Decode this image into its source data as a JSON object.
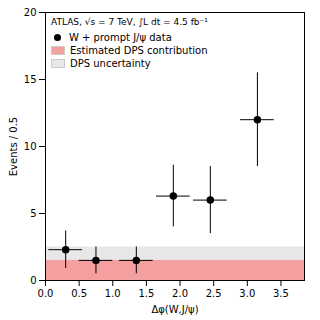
{
  "chart_data": {
    "type": "scatter",
    "xlabel": "Δφ(W,J/ψ)",
    "ylabel": "Events / 0.5",
    "xlim": [
      0,
      3.85
    ],
    "ylim": [
      0,
      20
    ],
    "xticks": [
      {
        "value": 0,
        "label": "0.0"
      },
      0.5,
      {
        "value": 1.0,
        "label": "1.0"
      },
      1.5,
      {
        "value": 2.0,
        "label": "2.0"
      },
      2.5,
      {
        "value": 3.0,
        "label": "3.0"
      },
      3.5
    ],
    "yticks": [
      0,
      5,
      10,
      15,
      20
    ],
    "x": [
      0.3,
      0.75,
      1.35,
      1.9,
      2.45,
      3.15
    ],
    "series": [
      {
        "name": "W + prompt J/ψ data",
        "color": "#000000",
        "marker": "circle",
        "values": [
          2.3,
          1.5,
          1.5,
          6.3,
          6.0,
          12.0
        ],
        "xerr": [
          0.25,
          0.25,
          0.25,
          0.25,
          0.25,
          0.25
        ],
        "yerr_lo": [
          1.4,
          1.0,
          1.0,
          2.3,
          2.5,
          3.5
        ],
        "yerr_hi": [
          1.4,
          1.0,
          1.0,
          2.3,
          2.5,
          3.5
        ]
      }
    ],
    "bands": [
      {
        "name": "Estimated DPS contribution",
        "lo": 0.0,
        "hi": 1.5,
        "color": "#f5a0a0"
      },
      {
        "name": "DPS uncertainty",
        "lo": 1.0,
        "hi": 2.5,
        "color": "#e8e8e8"
      }
    ],
    "annotations": [
      "ATLAS, √s = 7 TeV, ∫L dt = 4.5 fb⁻¹"
    ],
    "legend": "upper left",
    "grid": false
  }
}
